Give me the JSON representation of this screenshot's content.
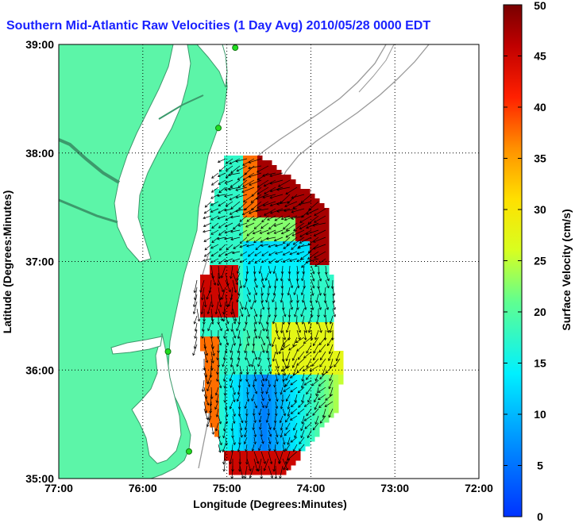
{
  "title": "Southern Mid-Atlantic Raw Velocities (1 Day Avg) 2010/05/28 0000 EDT",
  "chart_data": {
    "type": "map",
    "xlabel": "Longitude (Degrees:Minutes)",
    "ylabel": "Latitude (Degrees:Minutes)",
    "x_ticks": [
      "77:00",
      "76:00",
      "75:00",
      "74:00",
      "73:00",
      "72:00"
    ],
    "y_ticks": [
      "39:00",
      "38:00",
      "37:00",
      "36:00",
      "35:00"
    ],
    "xlim": [
      -77,
      -72
    ],
    "ylim": [
      35,
      39
    ],
    "grid": true,
    "colorbar": {
      "label": "Surface Velocity (cm/s)",
      "range": [
        0,
        50
      ],
      "ticks": [
        "0",
        "5",
        "10",
        "15",
        "20",
        "25",
        "30",
        "35",
        "40",
        "45",
        "50"
      ],
      "colormap": "jet"
    },
    "land_color": "#5cf5a8",
    "stations": [
      {
        "lon": -74.9,
        "lat": 38.97
      },
      {
        "lon": -75.1,
        "lat": 38.23
      },
      {
        "lon": -75.7,
        "lat": 36.17
      },
      {
        "lon": -75.45,
        "lat": 35.25
      }
    ]
  }
}
